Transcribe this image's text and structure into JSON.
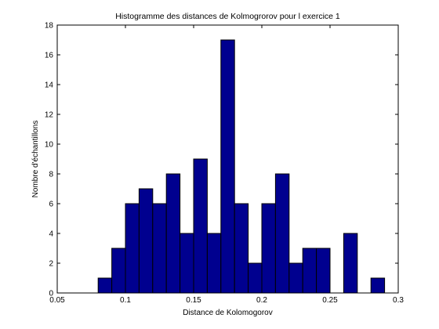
{
  "chart_data": {
    "type": "bar",
    "title": "Histogramme des distances de Kolmogrorov pour l exercice 1",
    "xlabel": "Distance de Kolomogorov",
    "ylabel": "Nombre d'échantillons",
    "xlim": [
      0.05,
      0.3
    ],
    "ylim": [
      0,
      18
    ],
    "xticks": [
      "0.05",
      "0.1",
      "0.15",
      "0.2",
      "0.25",
      "0.3"
    ],
    "yticks": [
      "0",
      "2",
      "4",
      "6",
      "8",
      "10",
      "12",
      "14",
      "16",
      "18"
    ],
    "bin_width": 0.01,
    "x": [
      0.085,
      0.095,
      0.105,
      0.115,
      0.125,
      0.135,
      0.145,
      0.155,
      0.165,
      0.175,
      0.185,
      0.195,
      0.205,
      0.215,
      0.225,
      0.235,
      0.245,
      0.255,
      0.265,
      0.275,
      0.285
    ],
    "values": [
      1,
      3,
      6,
      7,
      6,
      8,
      4,
      9,
      4,
      17,
      6,
      2,
      6,
      8,
      2,
      3,
      3,
      0,
      4,
      0,
      1
    ],
    "bar_color": "#00008f",
    "edge_color": "#000000",
    "grid": false,
    "legend": "none"
  }
}
